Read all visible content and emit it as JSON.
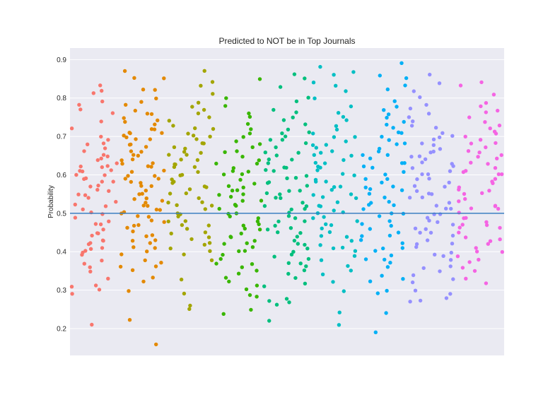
{
  "chart_data": {
    "type": "scatter",
    "title": "Predicted to NOT be in Top Journals",
    "xlabel": "",
    "ylabel": "Probability",
    "ylim": [
      0.13,
      0.93
    ],
    "yticks": [
      0.2,
      0.3,
      0.4,
      0.5,
      0.6,
      0.7,
      0.8,
      0.9
    ],
    "ytick_labels": [
      "0.2",
      "0.3",
      "0.4",
      "0.5",
      "0.6",
      "0.7",
      "0.8",
      "0.9"
    ],
    "xlim": [
      -0.5,
      8.5
    ],
    "grid": true,
    "reference_line": {
      "y": 0.5,
      "color": "#3b7fc1"
    },
    "background_color": "#eaeaf2",
    "series": [
      {
        "color": "#f8766d",
        "values": [
          0.74,
          0.83,
          0.79,
          0.78,
          0.68,
          0.67,
          0.65,
          0.64,
          0.62,
          0.61,
          0.6,
          0.6,
          0.59,
          0.58,
          0.57,
          0.56,
          0.55,
          0.54,
          0.53,
          0.52,
          0.5,
          0.48,
          0.47,
          0.46,
          0.45,
          0.43,
          0.43,
          0.42,
          0.42,
          0.41,
          0.4,
          0.38,
          0.37,
          0.35,
          0.33,
          0.31,
          0.3,
          0.29,
          0.21,
          0.82,
          0.81,
          0.77,
          0.76,
          0.72,
          0.7,
          0.69,
          0.66,
          0.63,
          0.61,
          0.58,
          0.56,
          0.52,
          0.49,
          0.44,
          0.4,
          0.39,
          0.36,
          0.31,
          0.65,
          0.62,
          0.57,
          0.55,
          0.51,
          0.47,
          0.62,
          0.64,
          0.5,
          0.45,
          0.41,
          0.59,
          0.68,
          0.61
        ]
      },
      {
        "color": "#e38900",
        "values": [
          0.87,
          0.85,
          0.82,
          0.8,
          0.79,
          0.78,
          0.77,
          0.76,
          0.75,
          0.74,
          0.73,
          0.72,
          0.71,
          0.71,
          0.7,
          0.69,
          0.68,
          0.67,
          0.66,
          0.65,
          0.64,
          0.63,
          0.62,
          0.61,
          0.6,
          0.59,
          0.58,
          0.57,
          0.56,
          0.55,
          0.54,
          0.53,
          0.52,
          0.51,
          0.5,
          0.49,
          0.48,
          0.47,
          0.46,
          0.45,
          0.44,
          0.43,
          0.42,
          0.41,
          0.4,
          0.38,
          0.37,
          0.36,
          0.35,
          0.33,
          0.32,
          0.3,
          0.22,
          0.16,
          0.85,
          0.82,
          0.76,
          0.74,
          0.72,
          0.7,
          0.68,
          0.66,
          0.63,
          0.62,
          0.6,
          0.58,
          0.55,
          0.53,
          0.51,
          0.49,
          0.47,
          0.44,
          0.41,
          0.39,
          0.36,
          0.71,
          0.69,
          0.65,
          0.61,
          0.57,
          0.52,
          0.48,
          0.43,
          0.64,
          0.59,
          0.54,
          0.5
        ]
      },
      {
        "color": "#a3a500",
        "values": [
          0.87,
          0.84,
          0.83,
          0.81,
          0.79,
          0.77,
          0.76,
          0.75,
          0.74,
          0.73,
          0.72,
          0.71,
          0.7,
          0.69,
          0.68,
          0.67,
          0.66,
          0.65,
          0.65,
          0.64,
          0.63,
          0.62,
          0.61,
          0.6,
          0.59,
          0.58,
          0.57,
          0.56,
          0.55,
          0.54,
          0.53,
          0.52,
          0.51,
          0.5,
          0.49,
          0.48,
          0.47,
          0.46,
          0.45,
          0.44,
          0.43,
          0.42,
          0.41,
          0.4,
          0.39,
          0.33,
          0.29,
          0.26,
          0.25,
          0.78,
          0.7,
          0.68,
          0.66,
          0.62,
          0.6,
          0.57,
          0.55,
          0.52,
          0.48,
          0.45,
          0.42,
          0.38,
          0.72,
          0.64,
          0.58,
          0.5,
          0.67,
          0.63,
          0.53,
          0.47
        ]
      },
      {
        "color": "#39b600",
        "values": [
          0.85,
          0.8,
          0.78,
          0.76,
          0.75,
          0.73,
          0.72,
          0.71,
          0.7,
          0.69,
          0.68,
          0.67,
          0.66,
          0.65,
          0.64,
          0.63,
          0.62,
          0.61,
          0.6,
          0.59,
          0.58,
          0.57,
          0.56,
          0.55,
          0.54,
          0.53,
          0.52,
          0.51,
          0.5,
          0.49,
          0.48,
          0.47,
          0.46,
          0.45,
          0.44,
          0.43,
          0.42,
          0.41,
          0.4,
          0.39,
          0.38,
          0.37,
          0.36,
          0.35,
          0.33,
          0.32,
          0.3,
          0.29,
          0.28,
          0.25,
          0.24,
          0.66,
          0.63,
          0.61,
          0.57,
          0.55,
          0.52,
          0.5,
          0.47,
          0.44,
          0.42,
          0.4,
          0.37,
          0.34,
          0.31,
          0.6,
          0.56,
          0.53,
          0.49,
          0.46
        ]
      },
      {
        "color": "#00bf7d",
        "values": [
          0.86,
          0.85,
          0.83,
          0.8,
          0.79,
          0.77,
          0.76,
          0.75,
          0.74,
          0.73,
          0.72,
          0.71,
          0.7,
          0.69,
          0.68,
          0.67,
          0.66,
          0.65,
          0.64,
          0.63,
          0.62,
          0.61,
          0.6,
          0.59,
          0.58,
          0.57,
          0.56,
          0.55,
          0.54,
          0.53,
          0.52,
          0.51,
          0.5,
          0.49,
          0.48,
          0.47,
          0.46,
          0.45,
          0.44,
          0.43,
          0.42,
          0.41,
          0.4,
          0.39,
          0.38,
          0.37,
          0.36,
          0.35,
          0.34,
          0.33,
          0.32,
          0.31,
          0.28,
          0.27,
          0.27,
          0.26,
          0.22,
          0.71,
          0.69,
          0.66,
          0.62,
          0.59,
          0.56,
          0.54,
          0.51,
          0.48,
          0.45,
          0.42,
          0.39,
          0.37,
          0.64,
          0.61,
          0.58,
          0.55,
          0.52,
          0.49,
          0.46
        ]
      },
      {
        "color": "#00bfc4",
        "values": [
          0.88,
          0.87,
          0.86,
          0.84,
          0.83,
          0.82,
          0.8,
          0.78,
          0.76,
          0.75,
          0.74,
          0.73,
          0.72,
          0.71,
          0.7,
          0.69,
          0.68,
          0.67,
          0.66,
          0.65,
          0.64,
          0.63,
          0.62,
          0.61,
          0.6,
          0.59,
          0.58,
          0.57,
          0.56,
          0.55,
          0.54,
          0.53,
          0.52,
          0.51,
          0.5,
          0.49,
          0.48,
          0.47,
          0.46,
          0.45,
          0.44,
          0.43,
          0.42,
          0.41,
          0.4,
          0.39,
          0.38,
          0.36,
          0.35,
          0.34,
          0.32,
          0.3,
          0.24,
          0.21,
          0.7,
          0.68,
          0.65,
          0.62,
          0.6,
          0.57,
          0.55,
          0.52,
          0.5,
          0.47,
          0.44,
          0.41,
          0.66,
          0.63,
          0.58,
          0.54,
          0.49
        ]
      },
      {
        "color": "#00b0f6",
        "values": [
          0.89,
          0.86,
          0.85,
          0.83,
          0.82,
          0.79,
          0.78,
          0.77,
          0.76,
          0.75,
          0.74,
          0.73,
          0.72,
          0.71,
          0.7,
          0.69,
          0.68,
          0.67,
          0.66,
          0.65,
          0.64,
          0.63,
          0.62,
          0.61,
          0.6,
          0.59,
          0.58,
          0.57,
          0.56,
          0.55,
          0.54,
          0.53,
          0.52,
          0.51,
          0.5,
          0.49,
          0.48,
          0.47,
          0.46,
          0.45,
          0.44,
          0.43,
          0.42,
          0.41,
          0.4,
          0.39,
          0.38,
          0.37,
          0.36,
          0.34,
          0.33,
          0.32,
          0.3,
          0.29,
          0.24,
          0.19,
          0.71,
          0.68,
          0.65,
          0.62,
          0.59,
          0.56,
          0.53,
          0.5,
          0.47,
          0.44,
          0.41,
          0.38,
          0.63,
          0.57,
          0.52
        ]
      },
      {
        "color": "#9590ff",
        "values": [
          0.86,
          0.84,
          0.82,
          0.8,
          0.78,
          0.77,
          0.76,
          0.75,
          0.74,
          0.73,
          0.72,
          0.71,
          0.7,
          0.69,
          0.68,
          0.67,
          0.66,
          0.65,
          0.64,
          0.63,
          0.62,
          0.61,
          0.6,
          0.59,
          0.58,
          0.57,
          0.56,
          0.55,
          0.54,
          0.53,
          0.52,
          0.51,
          0.5,
          0.49,
          0.48,
          0.47,
          0.46,
          0.45,
          0.44,
          0.43,
          0.42,
          0.41,
          0.4,
          0.39,
          0.38,
          0.36,
          0.35,
          0.34,
          0.33,
          0.32,
          0.3,
          0.29,
          0.28,
          0.27,
          0.27,
          0.7,
          0.68,
          0.65,
          0.62,
          0.6,
          0.57,
          0.54,
          0.51,
          0.48,
          0.45,
          0.42,
          0.39,
          0.36,
          0.66,
          0.63,
          0.59,
          0.55,
          0.5,
          0.46
        ]
      },
      {
        "color": "#f564e3",
        "values": [
          0.84,
          0.83,
          0.81,
          0.79,
          0.78,
          0.77,
          0.76,
          0.75,
          0.74,
          0.73,
          0.72,
          0.71,
          0.7,
          0.69,
          0.68,
          0.67,
          0.66,
          0.65,
          0.64,
          0.63,
          0.62,
          0.61,
          0.6,
          0.59,
          0.58,
          0.57,
          0.56,
          0.55,
          0.54,
          0.53,
          0.52,
          0.51,
          0.5,
          0.49,
          0.48,
          0.47,
          0.46,
          0.45,
          0.44,
          0.43,
          0.42,
          0.41,
          0.4,
          0.39,
          0.38,
          0.36,
          0.35,
          0.33,
          0.32,
          0.71,
          0.68,
          0.66,
          0.63,
          0.61,
          0.58,
          0.55,
          0.52,
          0.49,
          0.46,
          0.43,
          0.4,
          0.37,
          0.65,
          0.6,
          0.56,
          0.51,
          0.47
        ]
      }
    ]
  }
}
